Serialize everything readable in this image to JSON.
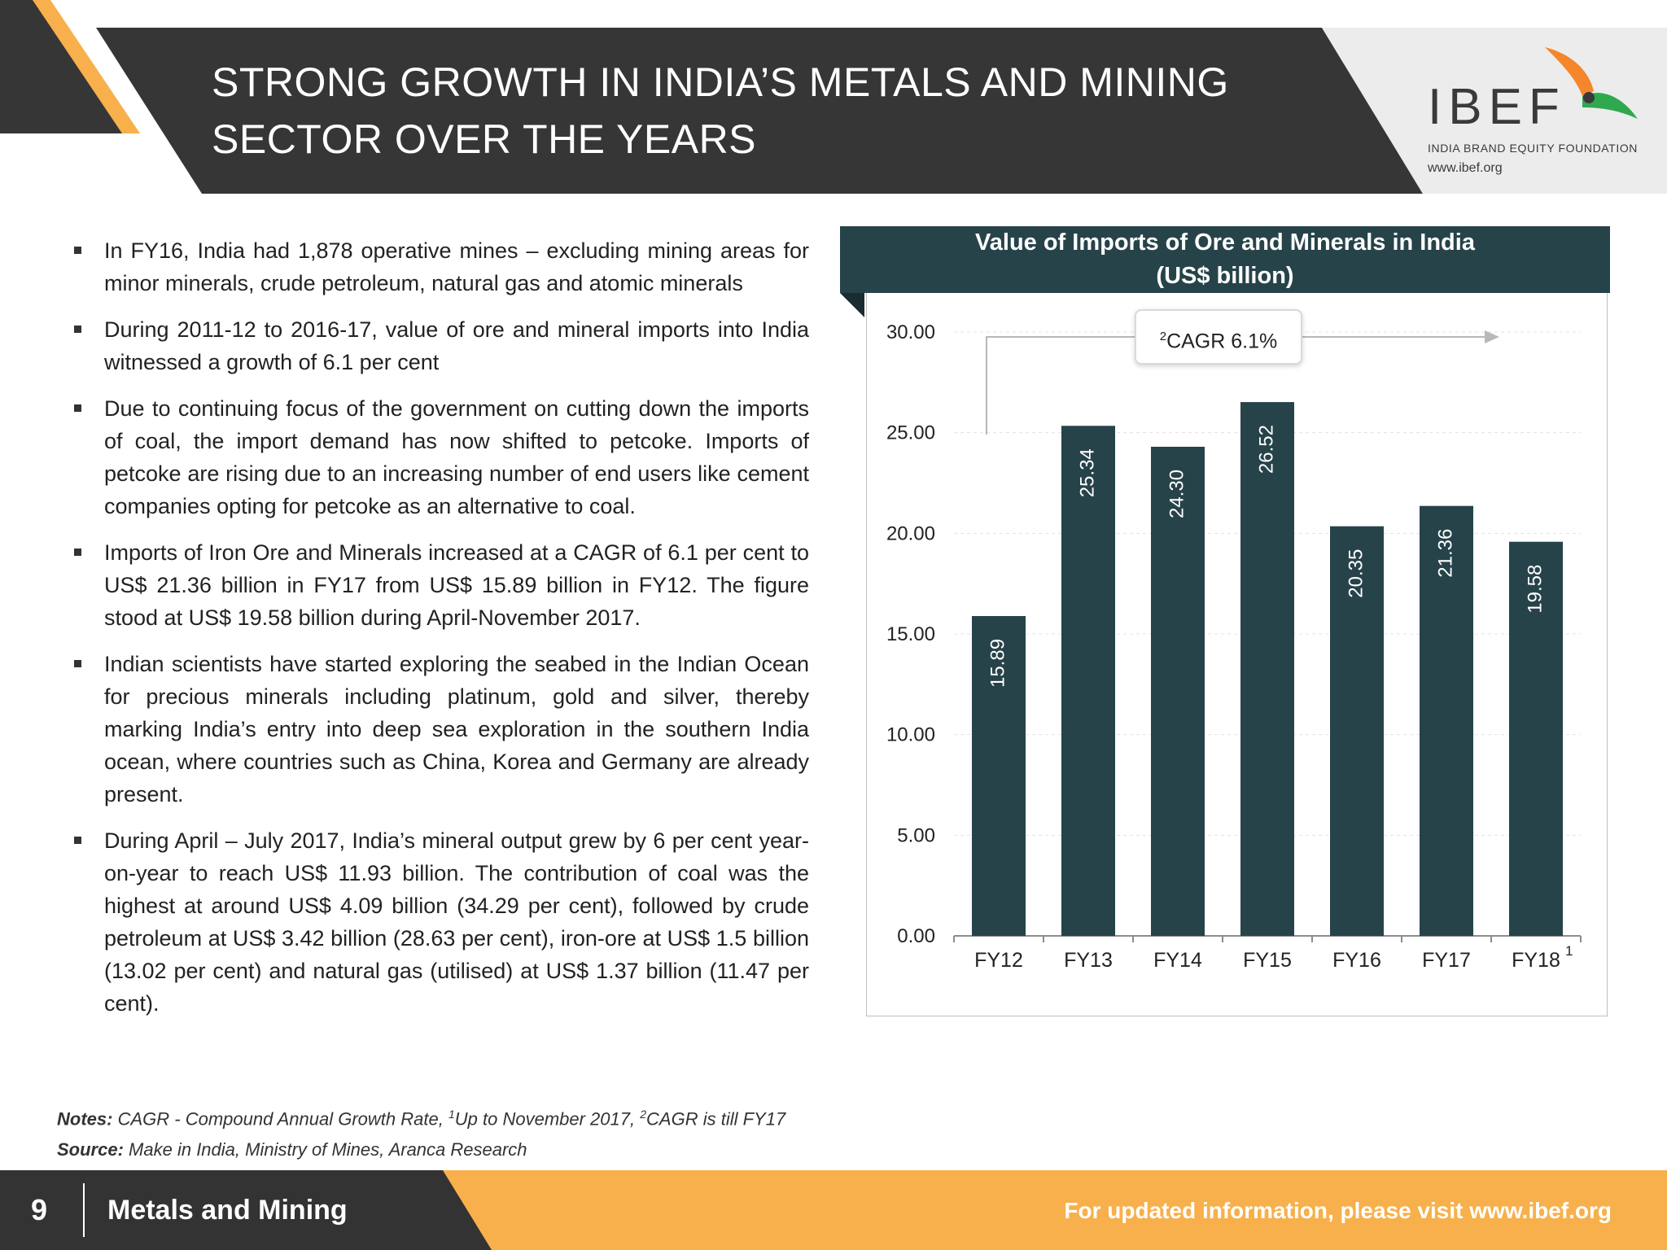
{
  "header": {
    "title_line1": "STRONG GROWTH IN INDIA’S METALS AND MINING",
    "title_line2": "SECTOR OVER THE YEARS",
    "logo_name": "IBEF",
    "logo_tagline": "INDIA BRAND EQUITY FOUNDATION",
    "logo_url": "www.ibef.org"
  },
  "bullets": [
    "In FY16, India had 1,878 operative mines – excluding mining areas for minor minerals, crude petroleum, natural gas and atomic minerals",
    "During 2011-12 to 2016-17, value of ore and mineral imports into India witnessed a growth of 6.1 per cent",
    "Due to continuing focus of the government on cutting down the imports of coal, the import demand has now shifted to petcoke. Imports of petcoke are rising due to an increasing number of end users like cement companies opting for petcoke as an alternative to coal.",
    "Imports of Iron Ore and Minerals increased at a CAGR of 6.1 per cent to US$ 21.36 billion in FY17 from US$ 15.89 billion in FY12. The figure stood at US$ 19.58 billion during April-November 2017.",
    "Indian scientists have started exploring the seabed in the Indian Ocean for precious minerals including platinum, gold and silver, thereby marking India’s entry into deep sea exploration in the southern India ocean, where countries such as China, Korea and Germany are already present.",
    "During April – July 2017, India’s mineral output grew by 6 per cent year-on-year to reach US$ 11.93 billion. The contribution of coal was the highest at around US$ 4.09 billion (34.29 per cent), followed by crude petroleum at US$ 3.42 billion (28.63 per cent), iron-ore at US$ 1.5 billion (13.02 per cent) and natural gas (utilised) at US$ 1.37 billion (11.47 per cent)."
  ],
  "notes": {
    "notes_label": "Notes:",
    "notes_text1": "CAGR - Compound Annual Growth Rate,",
    "notes_sup1": "1",
    "notes_text2": "Up to November 2017,",
    "notes_sup2": "2",
    "notes_text3": "CAGR is till FY17",
    "source_label": "Source:",
    "source_text": "Make in India, Ministry of Mines, Aranca Research"
  },
  "chart_data": {
    "type": "bar",
    "title": "Value of Imports of Ore and Minerals in India",
    "subtitle": "(US$ billion)",
    "categories": [
      "FY12",
      "FY13",
      "FY14",
      "FY15",
      "FY16",
      "FY17",
      "FY18"
    ],
    "category_superscripts": [
      "",
      "",
      "",
      "",
      "",
      "",
      "1"
    ],
    "values": [
      15.89,
      25.34,
      24.3,
      26.52,
      20.35,
      21.36,
      19.58
    ],
    "value_labels": [
      "15.89",
      "25.34",
      "24.30",
      "26.52",
      "20.35",
      "21.36",
      "19.58"
    ],
    "yticks": [
      "0.00",
      "5.00",
      "10.00",
      "15.00",
      "20.00",
      "25.00",
      "30.00"
    ],
    "ylim": [
      0,
      30
    ],
    "grid": true,
    "bar_color": "#27434a",
    "annotation_sup": "2",
    "annotation_text": "CAGR 6.1%"
  },
  "footer": {
    "page_number": "9",
    "section_title": "Metals and Mining",
    "note": "For updated information, please visit www.ibef.org"
  },
  "colors": {
    "header_dark": "#363636",
    "accent_orange": "#f7b04b",
    "chart_dark": "#27434a"
  }
}
